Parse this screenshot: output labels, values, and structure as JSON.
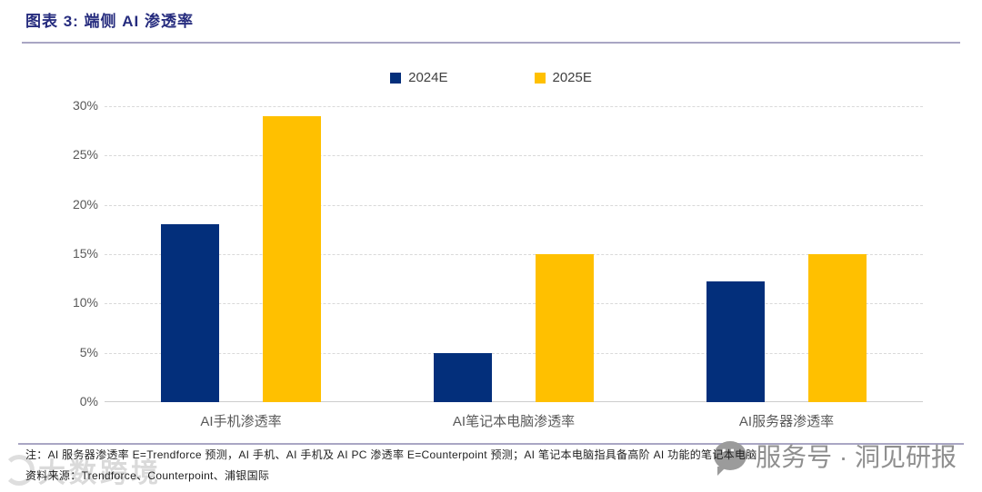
{
  "header": {
    "title": "图表 3: 端侧 AI 渗透率"
  },
  "chart_data": {
    "type": "bar",
    "title": "图表 3: 端侧 AI 渗透率",
    "categories": [
      "AI手机渗透率",
      "AI笔记本电脑渗透率",
      "AI服务器渗透率"
    ],
    "series": [
      {
        "name": "2024E",
        "color": "#032f7b",
        "values": [
          18,
          5,
          12.2
        ]
      },
      {
        "name": "2025E",
        "color": "#ffc000",
        "values": [
          29,
          15,
          15
        ]
      }
    ],
    "xlabel": "",
    "ylabel": "",
    "ylim": [
      0,
      30
    ],
    "ytick_step": 5,
    "ytick_suffix": "%",
    "grid": "horizontal dashed",
    "legend_position": "top center"
  },
  "footer": {
    "note": "注：AI 服务器渗透率 E=Trendforce 预测，AI 手机、AI 手机及 AI PC 渗透率 E=Counterpoint 预测；AI 笔记本电脑指具备高阶 AI 功能的笔记本电脑",
    "source": "资料来源：Trendforce、Counterpoint、浦银国际"
  },
  "watermarks": {
    "left_text": "大数跨境",
    "right_text": "服务号 · 洞见研报"
  },
  "colors": {
    "series_2024e": "#032f7b",
    "series_2025e": "#ffc000",
    "title_text": "#262c7e",
    "axis_text": "#595959",
    "gridline": "#d9d9d9",
    "rule": "#a9a6c4"
  }
}
